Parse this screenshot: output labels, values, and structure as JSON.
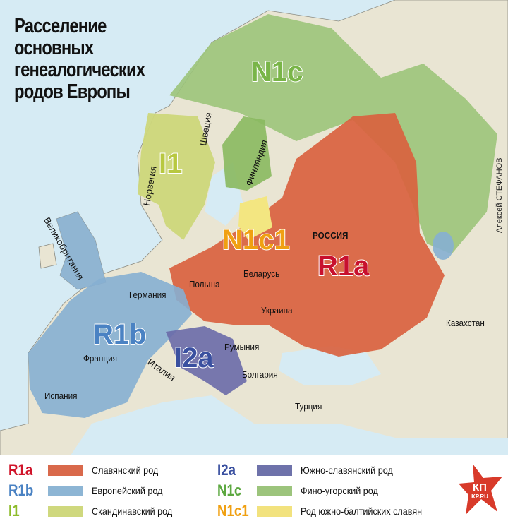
{
  "title": "Расселение\nосновных\nгенеалогических\nродов Европы",
  "credit": "Алексей СТЕФАНОВ",
  "countries": {
    "norway": "Норвегия",
    "sweden": "Швеция",
    "finland": "Финляндия",
    "britain": "Великобритания",
    "germany": "Германия",
    "poland": "Польша",
    "belarus": "Беларусь",
    "ukraine": "Украина",
    "russia": "РОССИЯ",
    "kazakhstan": "Казахстан",
    "france": "Франция",
    "spain": "Испания",
    "italy": "Италия",
    "romania": "Румыния",
    "bulgaria": "Болгария",
    "turkey": "Турция"
  },
  "map_labels": {
    "r1a": "R1a",
    "r1b": "R1b",
    "i1": "I1",
    "i2a": "I2a",
    "n1c": "N1c",
    "n1c1": "N1c1"
  },
  "colors": {
    "sea": "#d6ebf4",
    "land": "#e9e5d3",
    "r1a": "#d9623f",
    "r1b": "#86afd2",
    "i1": "#cdd77a",
    "i2a": "#6a6aa8",
    "n1c": "#9cc47a",
    "n1c1": "#f3e681"
  },
  "legend": [
    {
      "code": "R1a",
      "label": "Славянский род",
      "code_color": "#d0142a",
      "swatch": "#d9694b"
    },
    {
      "code": "R1b",
      "label": "Европейский род",
      "code_color": "#4a82c3",
      "swatch": "#8db5d4"
    },
    {
      "code": "I1",
      "label": "Скандинавский род",
      "code_color": "#8dbb2a",
      "swatch": "#cfd87e"
    },
    {
      "code": "I2a",
      "label": "Южно-славянский род",
      "code_color": "#3a50a0",
      "swatch": "#6e72aa"
    },
    {
      "code": "N1c",
      "label": "Фино-угорский род",
      "code_color": "#5ca840",
      "swatch": "#9cc47c"
    },
    {
      "code": "N1c1",
      "label": "Род южно-балтийских славян",
      "code_color": "#f0a012",
      "swatch": "#f2e27e"
    }
  ],
  "logo": {
    "text": "КП",
    "sub": "KP.RU"
  }
}
